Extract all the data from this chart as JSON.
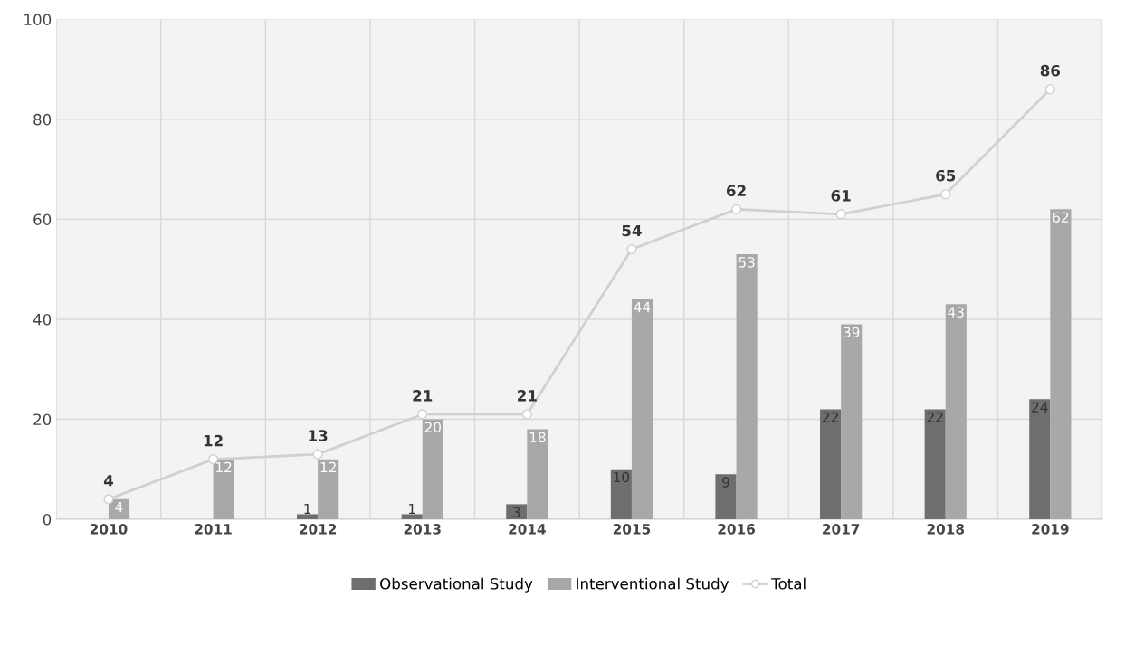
{
  "chart_data": {
    "type": "bar",
    "categories": [
      "2010",
      "2011",
      "2012",
      "2013",
      "2014",
      "2015",
      "2016",
      "2017",
      "2018",
      "2019"
    ],
    "series": [
      {
        "name": "Observational Study",
        "color": "#6e6e6e",
        "values": [
          0,
          0,
          1,
          1,
          3,
          10,
          9,
          22,
          22,
          24
        ],
        "value_labels": [
          null,
          null,
          "1",
          "1",
          "3",
          "10",
          "9",
          "22",
          "22",
          "24"
        ]
      },
      {
        "name": "Interventional Study",
        "color": "#a8a8a8",
        "values": [
          4,
          12,
          12,
          20,
          18,
          44,
          53,
          39,
          43,
          62
        ],
        "value_labels": [
          "4",
          "12",
          "12",
          "20",
          "18",
          "44",
          "53",
          "39",
          "43",
          "62"
        ]
      },
      {
        "name": "Total",
        "type": "line",
        "color": "#d0d0d0",
        "marker": "circle",
        "values": [
          4,
          12,
          13,
          21,
          21,
          54,
          62,
          61,
          65,
          86
        ],
        "value_labels": [
          "4",
          "12",
          "13",
          "21",
          "21",
          "54",
          "62",
          "61",
          "65",
          "86"
        ]
      }
    ],
    "ylim": [
      0,
      100
    ],
    "yticks": [
      0,
      20,
      40,
      60,
      80,
      100
    ],
    "grid": true,
    "legend": "bottom"
  }
}
